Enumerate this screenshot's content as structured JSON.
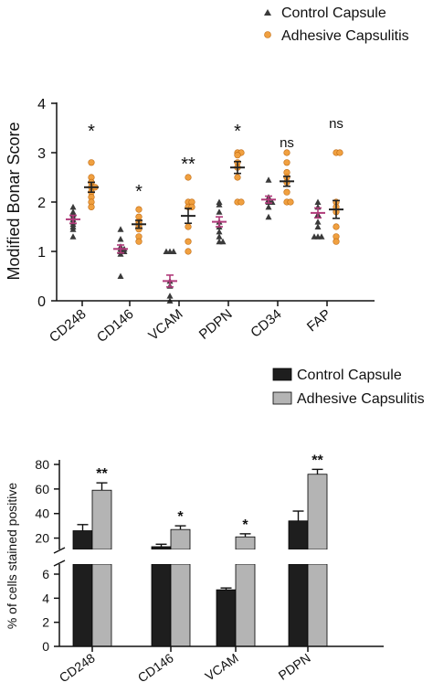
{
  "chart_data": [
    {
      "type": "scatter",
      "legend_position": "top-right",
      "ylabel": "Modified Bonar Score",
      "ylim": [
        0,
        4
      ],
      "yticks": [
        "0",
        "1",
        "2",
        "3",
        "4"
      ],
      "categories": [
        "CD248",
        "CD146",
        "VCAM",
        "PDPN",
        "CD34",
        "FAP"
      ],
      "significance": [
        "*",
        "*",
        "**",
        "*",
        "ns",
        "ns"
      ],
      "series": [
        {
          "name": "Control Capsule",
          "marker": "triangle",
          "color": "#3a3a3a",
          "means": [
            1.65,
            1.05,
            0.4,
            1.6,
            2.05,
            1.78
          ],
          "sem": [
            0.08,
            0.08,
            0.12,
            0.1,
            0.07,
            0.1
          ],
          "points": [
            [
              1.9,
              1.8,
              1.75,
              1.7,
              1.65,
              1.6,
              1.55,
              1.5,
              1.45,
              1.3
            ],
            [
              1.45,
              1.25,
              1.1,
              1.05,
              1.05,
              1.0,
              1.0,
              0.95,
              0.5
            ],
            [
              1.0,
              1.0,
              1.0,
              0.4,
              0.3,
              0.1,
              0.0
            ],
            [
              2.0,
              1.95,
              1.8,
              1.6,
              1.5,
              1.4,
              1.3,
              1.2,
              1.2
            ],
            [
              2.45,
              2.1,
              2.05,
              2.0,
              2.0,
              1.9,
              1.7
            ],
            [
              2.0,
              1.9,
              1.75,
              1.6,
              1.5,
              1.3,
              1.3,
              1.3
            ]
          ]
        },
        {
          "name": "Adhesive Capsulitis",
          "marker": "circle",
          "color": "#f0a040",
          "means": [
            2.3,
            1.55,
            1.72,
            2.7,
            2.42,
            1.85
          ],
          "sem": [
            0.1,
            0.08,
            0.15,
            0.12,
            0.1,
            0.18
          ],
          "points": [
            [
              2.8,
              2.5,
              2.4,
              2.3,
              2.3,
              2.2,
              2.1,
              2.0,
              1.9
            ],
            [
              1.85,
              1.7,
              1.6,
              1.55,
              1.5,
              1.45,
              1.3,
              1.2
            ],
            [
              2.5,
              2.0,
              2.0,
              1.9,
              1.9,
              1.5,
              1.2,
              1.0
            ],
            [
              3.0,
              3.0,
              2.95,
              2.8,
              2.7,
              2.5,
              2.0,
              2.0
            ],
            [
              3.0,
              2.8,
              2.6,
              2.5,
              2.4,
              2.2,
              2.0,
              2.0
            ],
            [
              3.0,
              3.0,
              2.0,
              1.9,
              1.8,
              1.5,
              1.3,
              1.2
            ]
          ]
        }
      ]
    },
    {
      "type": "bar",
      "legend_position": "top-right",
      "ylabel": "% of cells stained positive",
      "broken_axis": true,
      "upper_yticks": [
        "20",
        "40",
        "60",
        "80"
      ],
      "lower_yticks": [
        "0",
        "2",
        "4",
        "6"
      ],
      "categories": [
        "CD248",
        "CD146",
        "VCAM",
        "PDPN"
      ],
      "significance": [
        "**",
        "*",
        "*",
        "**"
      ],
      "series": [
        {
          "name": "Control Capsule",
          "color": "#1e1e1e",
          "values": [
            26,
            13,
            4.7,
            34
          ],
          "sem": [
            5,
            2,
            0.15,
            8
          ]
        },
        {
          "name": "Adhesive Capsulitis",
          "color": "#b4b4b4",
          "values": [
            59,
            27,
            21,
            72
          ],
          "sem": [
            6,
            3,
            2.5,
            4
          ]
        }
      ]
    }
  ]
}
